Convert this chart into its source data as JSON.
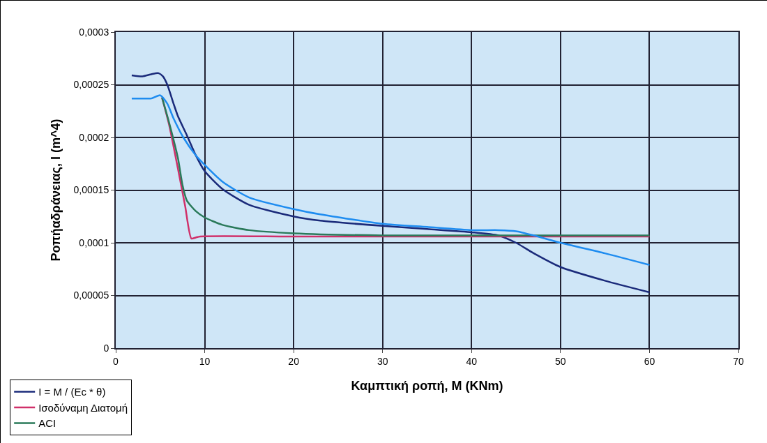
{
  "chart_data": {
    "type": "line",
    "xlabel": "Καμπτική ροπή, M (KNm)",
    "ylabel": "Ροπήαδράνειας, I (m^4)",
    "xlim": [
      0,
      70
    ],
    "xticks": [
      0,
      10,
      20,
      30,
      40,
      50,
      60,
      70
    ],
    "ylim": [
      0,
      0.0003
    ],
    "yticks": [
      {
        "value": 0,
        "label": "0"
      },
      {
        "value": 5e-05,
        "label": "0,00005"
      },
      {
        "value": 0.0001,
        "label": "0,0001"
      },
      {
        "value": 0.00015,
        "label": "0,00015"
      },
      {
        "value": 0.0002,
        "label": "0,0002"
      },
      {
        "value": 0.00025,
        "label": "0,00025"
      },
      {
        "value": 0.0003,
        "label": "0,0003"
      }
    ],
    "grid": true,
    "legend": "bottom left",
    "line_style": "solid",
    "marker": "none",
    "series": [
      {
        "name": "I = M / (Ec * θ)",
        "color": "#1a2a7a",
        "x": [
          1.8,
          3,
          4,
          4.8,
          5.3,
          5.8,
          6.5,
          7,
          8,
          9,
          10,
          12,
          15,
          20,
          23,
          30,
          35,
          40,
          43,
          45,
          47,
          50,
          55,
          60
        ],
        "values": [
          0.000259,
          0.000258,
          0.00026,
          0.000261,
          0.000258,
          0.00025,
          0.000232,
          0.00022,
          0.000202,
          0.000183,
          0.000168,
          0.000151,
          0.000136,
          0.000125,
          0.000121,
          0.000116,
          0.000113,
          0.00011,
          0.000107,
          0.0001,
          9e-05,
          7.7e-05,
          6.4e-05,
          5.3e-05
        ]
      },
      {
        "name": "Ισοδύναμη Διατομή",
        "color": "#d0306a",
        "x": [
          5.2,
          6,
          7,
          7.8,
          8.5,
          9,
          9.5,
          20,
          40,
          60
        ],
        "values": [
          0.000238,
          0.000212,
          0.00017,
          0.000135,
          0.000104,
          0.000105,
          0.000106,
          0.000106,
          0.000106,
          0.000106
        ]
      },
      {
        "name": "ACI",
        "color": "#2a7a5a",
        "x": [
          5.2,
          6,
          7,
          7.5,
          8,
          9,
          10,
          12,
          15,
          20,
          30,
          40,
          60
        ],
        "values": [
          0.000238,
          0.000214,
          0.00018,
          0.000155,
          0.00014,
          0.00013,
          0.000124,
          0.000117,
          0.000112,
          0.000109,
          0.000107,
          0.000107,
          0.000107
        ]
      },
      {
        "color": "#1e8cf0",
        "x": [
          1.8,
          3,
          4,
          5,
          5.8,
          6.5,
          7.6,
          9,
          10,
          12,
          15,
          20,
          23,
          30,
          35,
          40,
          43,
          45,
          47,
          50,
          55,
          60
        ],
        "values": [
          0.000237,
          0.000237,
          0.000237,
          0.00024,
          0.000232,
          0.000218,
          0.0002,
          0.000183,
          0.000174,
          0.000158,
          0.000143,
          0.000132,
          0.000127,
          0.000118,
          0.000115,
          0.000112,
          0.000112,
          0.000111,
          0.000107,
          0.0001,
          9e-05,
          7.9e-05
        ]
      }
    ]
  }
}
